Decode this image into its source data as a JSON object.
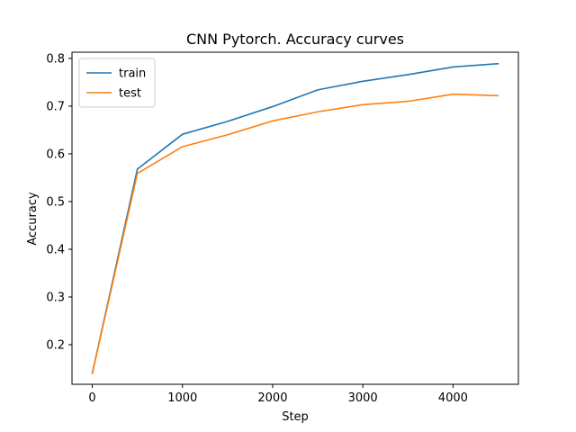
{
  "chart_data": {
    "type": "line",
    "title": "CNN Pytorch. Accuracy curves",
    "xlabel": "Step",
    "ylabel": "Accuracy",
    "xlim": [
      -225,
      4725
    ],
    "ylim": [
      0.117,
      0.813
    ],
    "xticks": [
      0,
      1000,
      2000,
      3000,
      4000
    ],
    "yticks": [
      0.2,
      0.3,
      0.4,
      0.5,
      0.6,
      0.7,
      0.8
    ],
    "xtick_labels": [
      "0",
      "1000",
      "2000",
      "3000",
      "4000"
    ],
    "ytick_labels": [
      "0.2",
      "0.3",
      "0.4",
      "0.5",
      "0.6",
      "0.7",
      "0.8"
    ],
    "grid": false,
    "legend_position": "top-left",
    "x": [
      0,
      500,
      1000,
      1500,
      2000,
      2500,
      3000,
      3500,
      4000,
      4500
    ],
    "series": [
      {
        "name": "train",
        "color": "#1f77b4",
        "values": [
          0.14,
          0.568,
          0.641,
          0.668,
          0.699,
          0.734,
          0.752,
          0.766,
          0.782,
          0.789
        ]
      },
      {
        "name": "test",
        "color": "#ff7f0e",
        "values": [
          0.14,
          0.559,
          0.615,
          0.64,
          0.669,
          0.688,
          0.703,
          0.71,
          0.725,
          0.722
        ]
      }
    ]
  }
}
